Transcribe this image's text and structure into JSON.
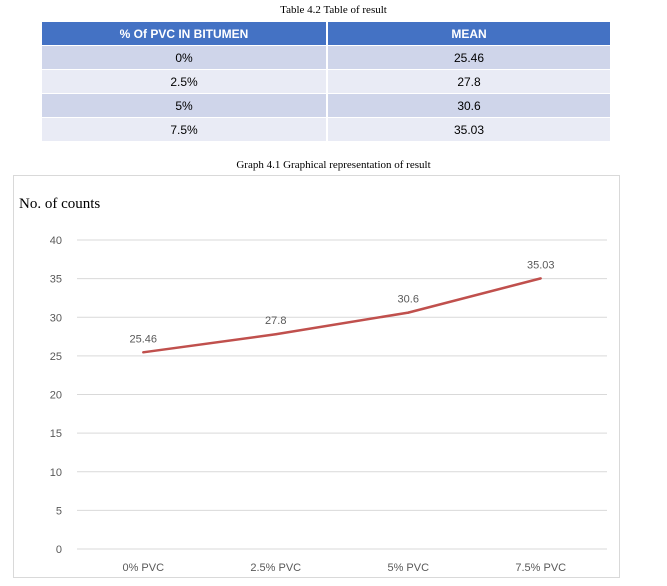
{
  "table": {
    "caption": "Table 4.2 Table of result",
    "headers": [
      "% Of PVC IN BITUMEN",
      "MEAN"
    ],
    "rows": [
      [
        "0%",
        "25.46"
      ],
      [
        "2.5%",
        "27.8"
      ],
      [
        "5%",
        "30.6"
      ],
      [
        "7.5%",
        "35.03"
      ]
    ]
  },
  "graph": {
    "caption": "Graph 4.1 Graphical representation of result"
  },
  "chart_data": {
    "type": "line",
    "categories": [
      "0% PVC",
      "2.5% PVC",
      "5% PVC",
      "7.5% PVC"
    ],
    "values": [
      25.46,
      27.8,
      30.6,
      35.03
    ],
    "data_labels": [
      "25.46",
      "27.8",
      "30.6",
      "35.03"
    ],
    "ylabel": "No. of counts",
    "xlabel": "",
    "ylim": [
      0,
      40
    ],
    "yticks": [
      0,
      5,
      10,
      15,
      20,
      25,
      30,
      35,
      40
    ],
    "grid": true,
    "legend": "none",
    "line_color": "#c0504d",
    "grid_color": "#d9d9d9",
    "tick_label_color": "#595959"
  }
}
